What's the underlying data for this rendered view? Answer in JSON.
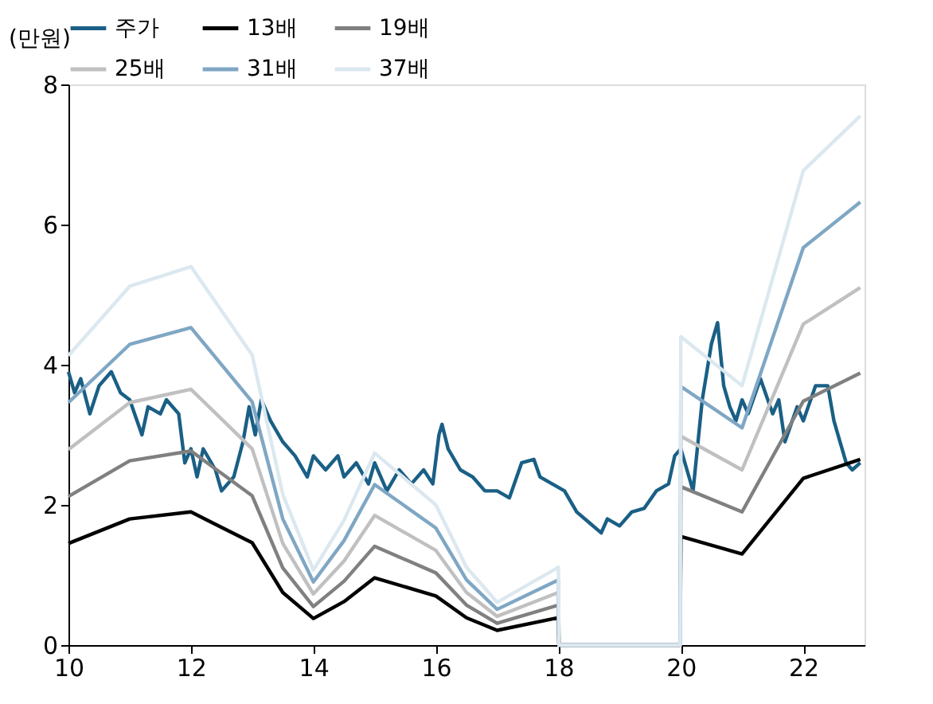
{
  "chart_data": {
    "type": "line",
    "ylabel": "(만원)",
    "xlim": [
      10,
      23
    ],
    "xticks": [
      10,
      12,
      14,
      16,
      18,
      20,
      22
    ],
    "ylim": [
      0,
      8
    ],
    "yticks": [
      0,
      2,
      4,
      6,
      8
    ],
    "grid": false,
    "legend": "top",
    "line_style": "solid",
    "marker": "none",
    "series": [
      {
        "name": "주가",
        "color": "#1a5f85",
        "x": [
          10.0,
          10.1,
          10.2,
          10.35,
          10.5,
          10.7,
          10.85,
          11.0,
          11.2,
          11.3,
          11.5,
          11.6,
          11.8,
          11.9,
          12.0,
          12.1,
          12.2,
          12.4,
          12.5,
          12.7,
          12.85,
          12.95,
          13.05,
          13.15,
          13.3,
          13.5,
          13.7,
          13.9,
          14.0,
          14.2,
          14.4,
          14.5,
          14.7,
          14.9,
          15.0,
          15.2,
          15.4,
          15.6,
          15.8,
          15.95,
          16.05,
          16.1,
          16.2,
          16.4,
          16.6,
          16.8,
          17.0,
          17.2,
          17.4,
          17.6,
          17.7,
          17.9,
          18.1,
          18.3,
          18.5,
          18.7,
          18.8,
          19.0,
          19.2,
          19.4,
          19.6,
          19.8,
          19.9,
          20.0,
          20.1,
          20.2,
          20.35,
          20.5,
          20.6,
          20.7,
          20.8,
          20.9,
          21.0,
          21.1,
          21.3,
          21.5,
          21.6,
          21.7,
          21.9,
          22.0,
          22.2,
          22.4,
          22.5,
          22.6,
          22.7,
          22.8,
          22.93
        ],
        "values": [
          3.9,
          3.6,
          3.8,
          3.3,
          3.7,
          3.9,
          3.6,
          3.5,
          3.0,
          3.4,
          3.3,
          3.5,
          3.3,
          2.6,
          2.8,
          2.4,
          2.8,
          2.5,
          2.2,
          2.4,
          2.9,
          3.4,
          3.0,
          3.5,
          3.2,
          2.9,
          2.7,
          2.4,
          2.7,
          2.5,
          2.7,
          2.4,
          2.6,
          2.3,
          2.6,
          2.2,
          2.5,
          2.3,
          2.5,
          2.3,
          3.0,
          3.15,
          2.8,
          2.5,
          2.4,
          2.2,
          2.2,
          2.1,
          2.6,
          2.65,
          2.4,
          2.3,
          2.2,
          1.9,
          1.75,
          1.6,
          1.8,
          1.7,
          1.9,
          1.95,
          2.2,
          2.3,
          2.7,
          2.8,
          2.5,
          2.2,
          3.5,
          4.3,
          4.6,
          3.7,
          3.4,
          3.2,
          3.5,
          3.3,
          3.8,
          3.3,
          3.5,
          2.9,
          3.4,
          3.2,
          3.7,
          3.7,
          3.2,
          2.9,
          2.6,
          2.5,
          2.6
        ]
      },
      {
        "name": "13배",
        "color": "#000000",
        "values": [
          1.45,
          1.8,
          1.9,
          1.46,
          0.75,
          0.38,
          0.62,
          0.96,
          0.7,
          0.39,
          0.21,
          0.39,
          0,
          0,
          1.55,
          1.3,
          2.38,
          2.65
        ]
      },
      {
        "name": "19배",
        "color": "#808080",
        "values": [
          2.12,
          2.63,
          2.77,
          2.13,
          1.1,
          0.55,
          0.91,
          1.41,
          1.03,
          0.57,
          0.31,
          0.57,
          0,
          0,
          2.26,
          1.9,
          3.48,
          3.88
        ]
      },
      {
        "name": "25배",
        "color": "#c0c0c0",
        "values": [
          2.79,
          3.46,
          3.65,
          2.8,
          1.45,
          0.73,
          1.2,
          1.85,
          1.35,
          0.75,
          0.41,
          0.75,
          0,
          0,
          2.98,
          2.5,
          4.58,
          5.1
        ]
      },
      {
        "name": "31배",
        "color": "#7fa7c4",
        "values": [
          3.46,
          4.29,
          4.53,
          3.47,
          1.8,
          0.9,
          1.49,
          2.29,
          1.67,
          0.93,
          0.51,
          0.93,
          0,
          0,
          3.69,
          3.1,
          5.67,
          6.32
        ]
      },
      {
        "name": "37배",
        "color": "#dce8f0",
        "values": [
          4.13,
          5.12,
          5.4,
          4.14,
          2.15,
          1.07,
          1.78,
          2.74,
          2.0,
          1.11,
          0.61,
          1.11,
          0,
          0,
          4.4,
          3.7,
          6.77,
          7.55
        ]
      }
    ],
    "x": [
      10,
      11,
      12,
      13,
      13.5,
      14,
      14.5,
      15,
      16,
      16.5,
      17,
      18,
      18.01,
      19.99,
      20,
      21,
      22,
      22.93
    ]
  }
}
